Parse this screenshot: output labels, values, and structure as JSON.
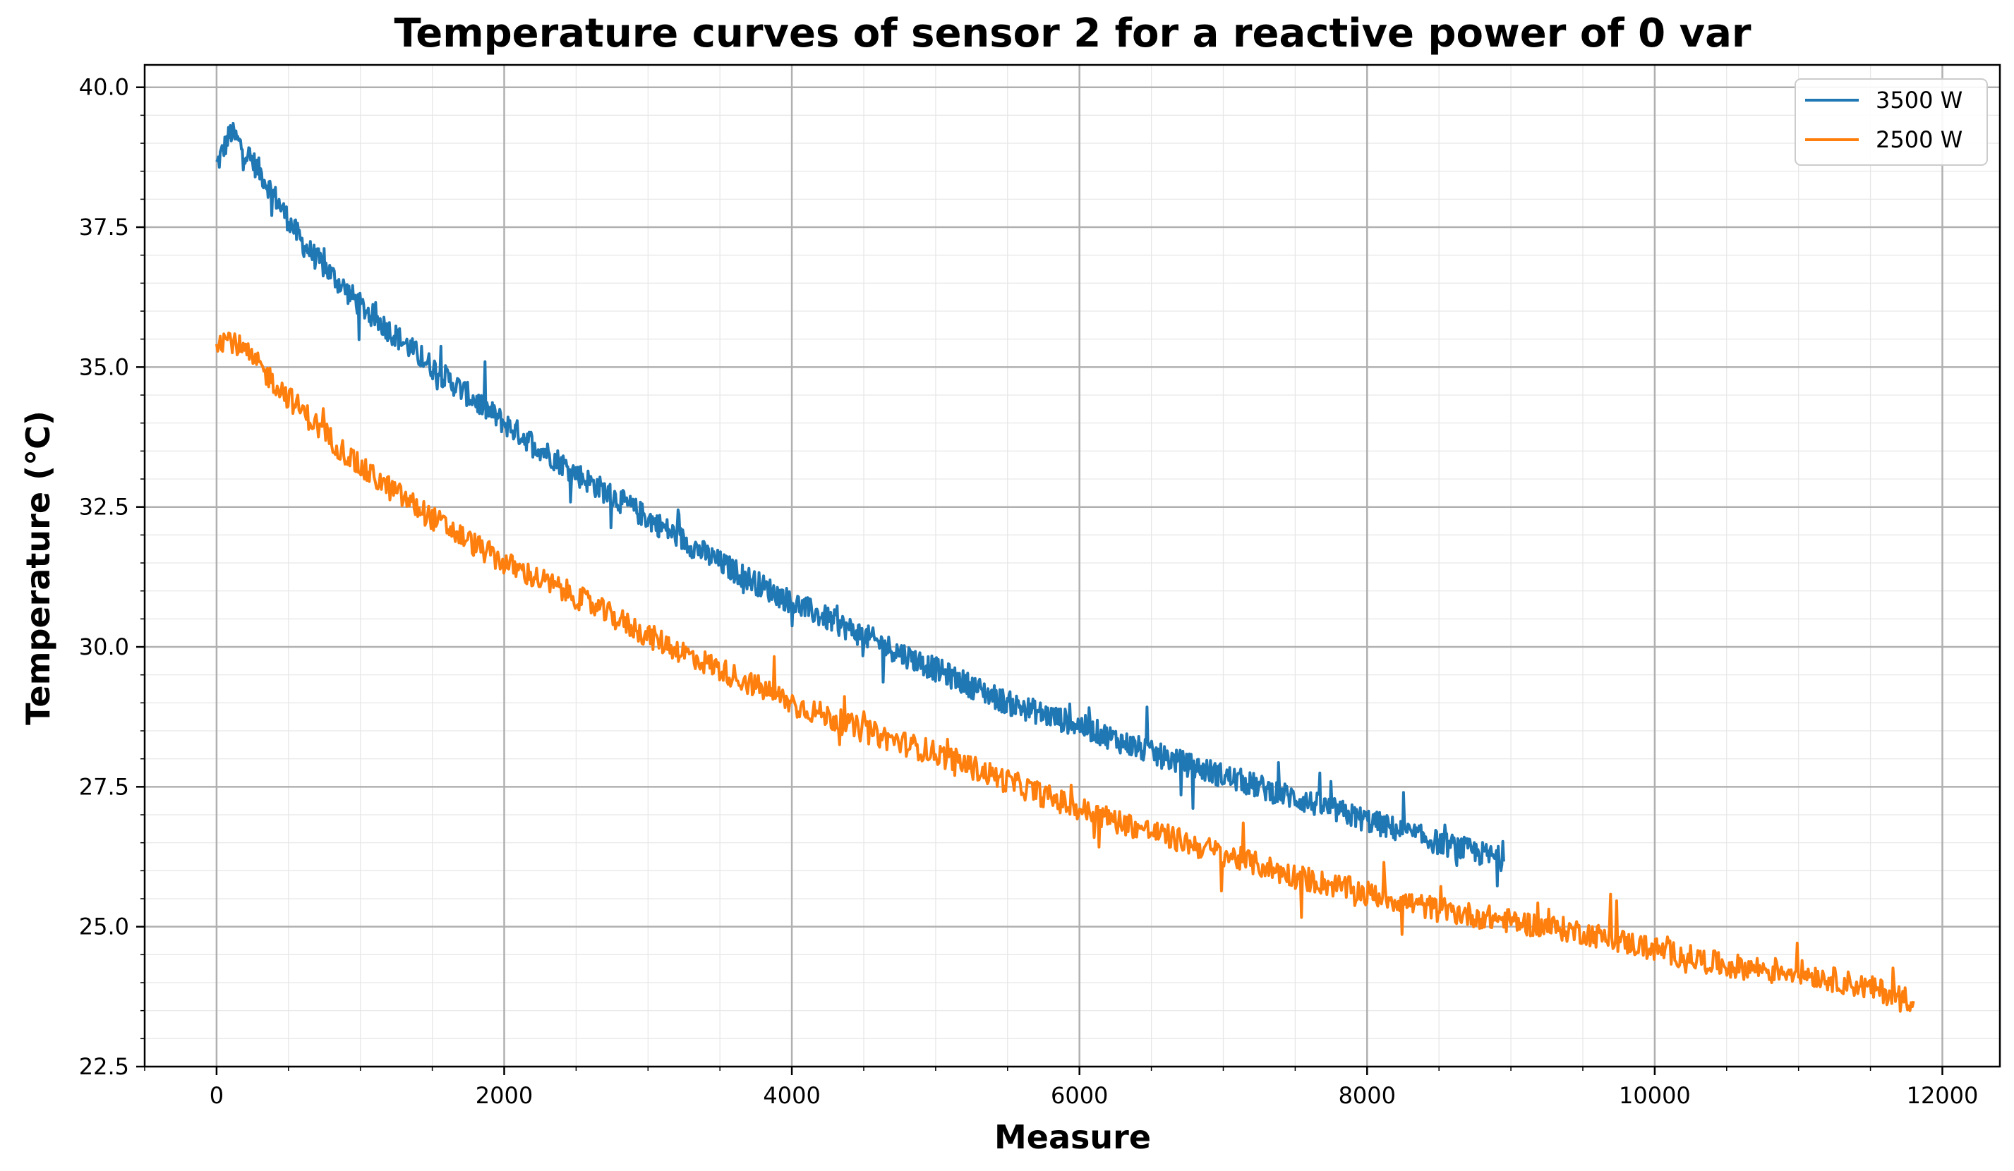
{
  "chart_data": {
    "type": "line",
    "title": "Temperature curves of sensor 2 for a reactive power of 0 var",
    "xlabel": "Measure",
    "ylabel": "Temperature (°C)",
    "xlim": [
      -500,
      12400
    ],
    "ylim": [
      22.5,
      40.4
    ],
    "xticks": [
      0,
      2000,
      4000,
      6000,
      8000,
      10000,
      12000
    ],
    "xtick_labels": [
      "0",
      "2000",
      "4000",
      "6000",
      "8000",
      "10000",
      "12000"
    ],
    "yticks": [
      22.5,
      25.0,
      27.5,
      30.0,
      32.5,
      35.0,
      37.5,
      40.0
    ],
    "ytick_labels": [
      "22.5",
      "25.0",
      "27.5",
      "30.0",
      "32.5",
      "35.0",
      "37.5",
      "40.0"
    ],
    "grid": true,
    "minor_grid": true,
    "legend_position": "top-right",
    "series": [
      {
        "name": "3500 W",
        "color": "#1f77b4",
        "noise": 0.22,
        "x": [
          0,
          100,
          300,
          600,
          1000,
          1500,
          2000,
          2500,
          3000,
          3500,
          4000,
          4500,
          5000,
          5500,
          6000,
          6500,
          7000,
          7500,
          8000,
          8500,
          8950
        ],
        "y": [
          38.6,
          39.2,
          38.5,
          37.2,
          36.1,
          35.0,
          34.0,
          33.1,
          32.3,
          31.5,
          30.8,
          30.2,
          29.6,
          29.0,
          28.6,
          28.1,
          27.7,
          27.3,
          26.9,
          26.5,
          26.2
        ]
      },
      {
        "name": "2500 W",
        "color": "#ff7f0e",
        "noise": 0.22,
        "x": [
          0,
          100,
          300,
          600,
          1000,
          1500,
          2000,
          2500,
          3000,
          3500,
          4000,
          4500,
          5000,
          5500,
          6000,
          6500,
          7000,
          7500,
          8000,
          8500,
          9000,
          9500,
          10000,
          10500,
          11000,
          11500,
          11800
        ],
        "y": [
          35.5,
          35.5,
          35.0,
          34.2,
          33.2,
          32.3,
          31.5,
          30.9,
          30.2,
          29.6,
          29.0,
          28.5,
          28.1,
          27.6,
          27.1,
          26.7,
          26.3,
          25.9,
          25.6,
          25.3,
          25.1,
          24.9,
          24.6,
          24.3,
          24.2,
          23.9,
          23.7
        ]
      }
    ]
  }
}
